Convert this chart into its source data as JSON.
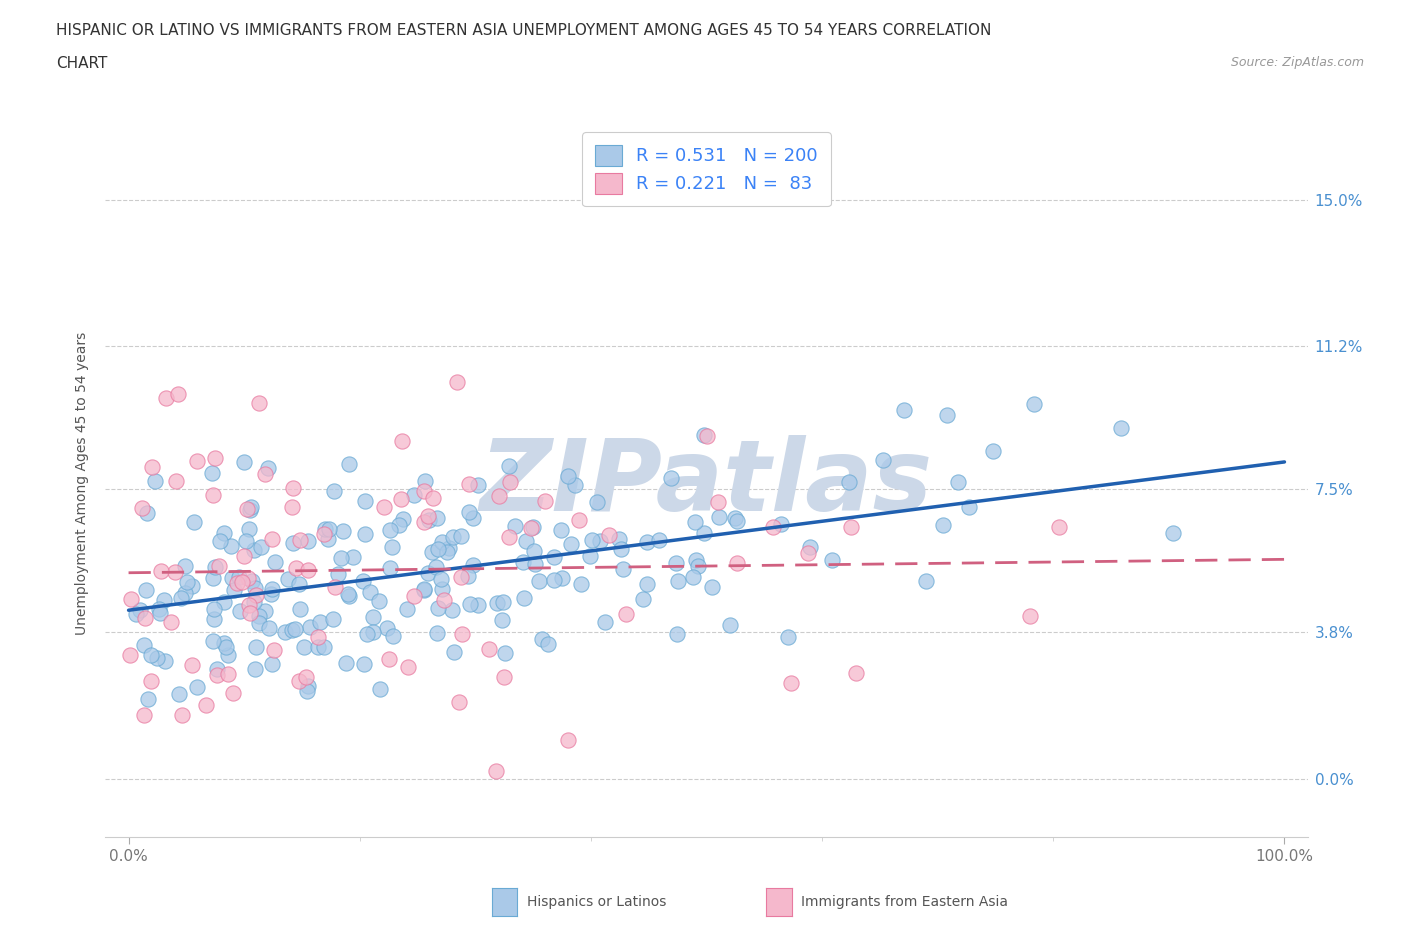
{
  "title_line1": "HISPANIC OR LATINO VS IMMIGRANTS FROM EASTERN ASIA UNEMPLOYMENT AMONG AGES 45 TO 54 YEARS CORRELATION",
  "title_line2": "CHART",
  "source_text": "Source: ZipAtlas.com",
  "ylabel": "Unemployment Among Ages 45 to 54 years",
  "xlim": [
    -0.02,
    1.02
  ],
  "ylim": [
    -0.015,
    0.168
  ],
  "yticks": [
    0.0,
    0.038,
    0.075,
    0.112,
    0.15
  ],
  "ytick_labels": [
    "0.0%",
    "3.8%",
    "7.5%",
    "11.2%",
    "15.0%"
  ],
  "xtick_labels": [
    "0.0%",
    "100.0%"
  ],
  "xtick_positions": [
    0.0,
    1.0
  ],
  "blue_R": 0.531,
  "blue_N": 200,
  "pink_R": 0.221,
  "pink_N": 83,
  "blue_color": "#aac9e8",
  "blue_edge_color": "#6aaad4",
  "pink_color": "#f5b8cc",
  "pink_edge_color": "#e87aa0",
  "trendline_blue_color": "#2060b0",
  "trendline_pink_color": "#d06080",
  "legend_text_color": "#3b82f6",
  "source_color": "#999999",
  "title_color": "#333333",
  "ylabel_color": "#555555",
  "watermark_color": "#ccd8e8",
  "background_color": "#ffffff",
  "grid_color": "#cccccc",
  "right_ytick_color": "#4a90d0",
  "xtick_color": "#777777",
  "bottom_legend_labels": [
    "Hispanics or Latinos",
    "Immigrants from Eastern Asia"
  ],
  "watermark_text": "ZIPatlas"
}
